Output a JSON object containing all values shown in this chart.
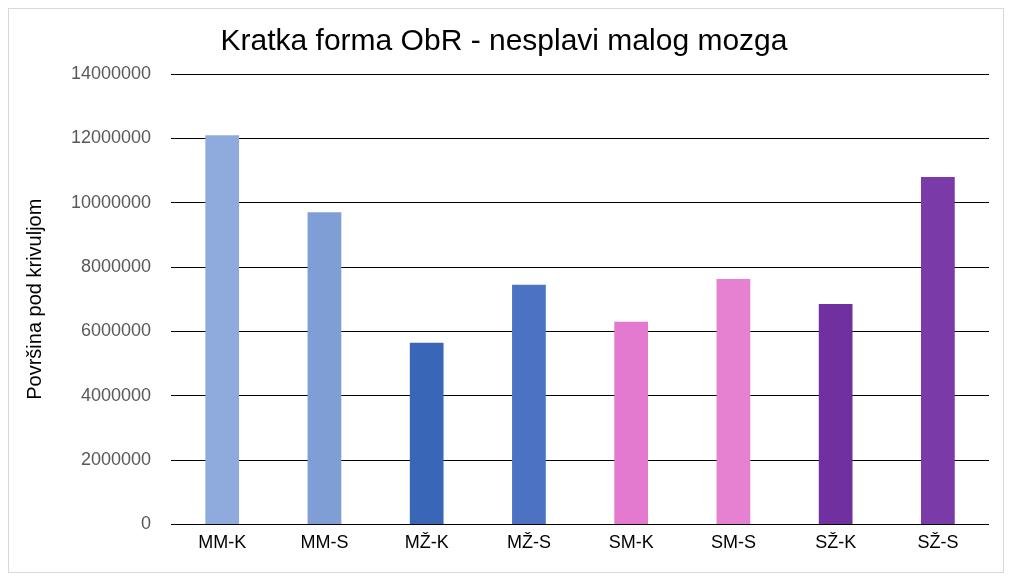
{
  "chart_data": {
    "type": "bar",
    "title": "Kratka forma ObR - nesplavi malog mozga",
    "ylabel": "Površina pod krivuljom",
    "categories": [
      "MM-K",
      "MM-S",
      "MŽ-K",
      "MŽ-S",
      "SM-K",
      "SM-S",
      "SŽ-K",
      "SŽ-S"
    ],
    "values": [
      12100000,
      9700000,
      5650000,
      7450000,
      6300000,
      7630000,
      6850000,
      10800000
    ],
    "colors": [
      "#8faadc",
      "#7f9ed6",
      "#3a66b8",
      "#4c72c4",
      "#e37ad0",
      "#e680d0",
      "#7030a0",
      "#7a3aa8"
    ],
    "ylim": [
      0,
      14000000
    ],
    "yticks": [
      0,
      2000000,
      4000000,
      6000000,
      8000000,
      10000000,
      12000000,
      14000000
    ],
    "grid": "y",
    "legend": false
  }
}
